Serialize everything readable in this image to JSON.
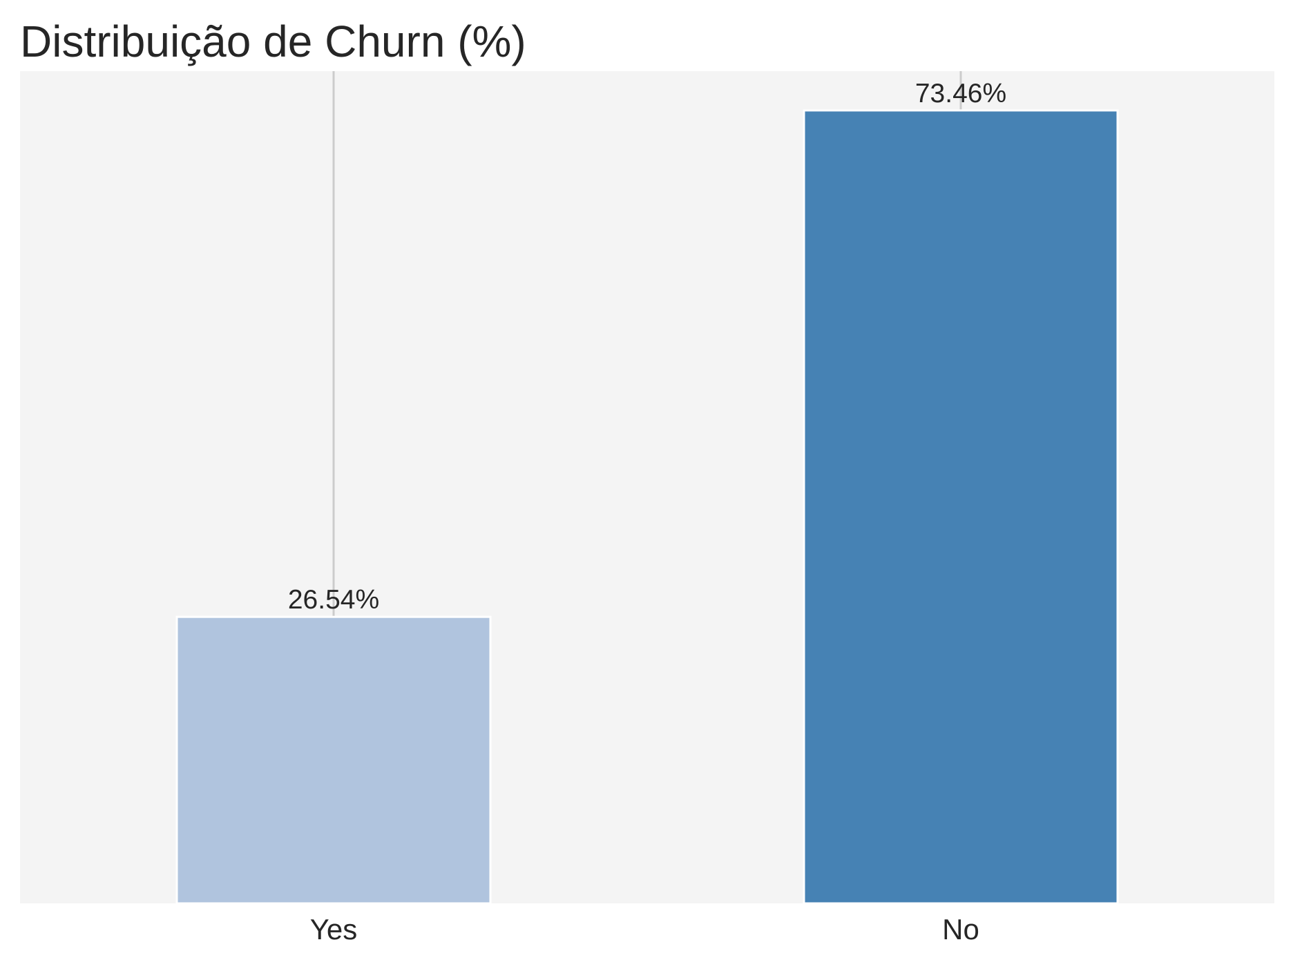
{
  "chart_data": {
    "type": "bar",
    "title": "Distribuição de Churn (%)",
    "xlabel": "",
    "ylabel": "",
    "categories": [
      "Yes",
      "No"
    ],
    "values": [
      26.54,
      73.46
    ],
    "value_labels": [
      "26.54%",
      "73.46%"
    ],
    "ylim": [
      0,
      77.1
    ],
    "grid": "vertical",
    "legend": "none",
    "colors": {
      "background": "#f4f4f4",
      "gridline": "#cccccc",
      "bars": [
        "#b0c4de",
        "#4682b4"
      ],
      "bar_edge": "#ffffff",
      "text": "#262626"
    }
  }
}
